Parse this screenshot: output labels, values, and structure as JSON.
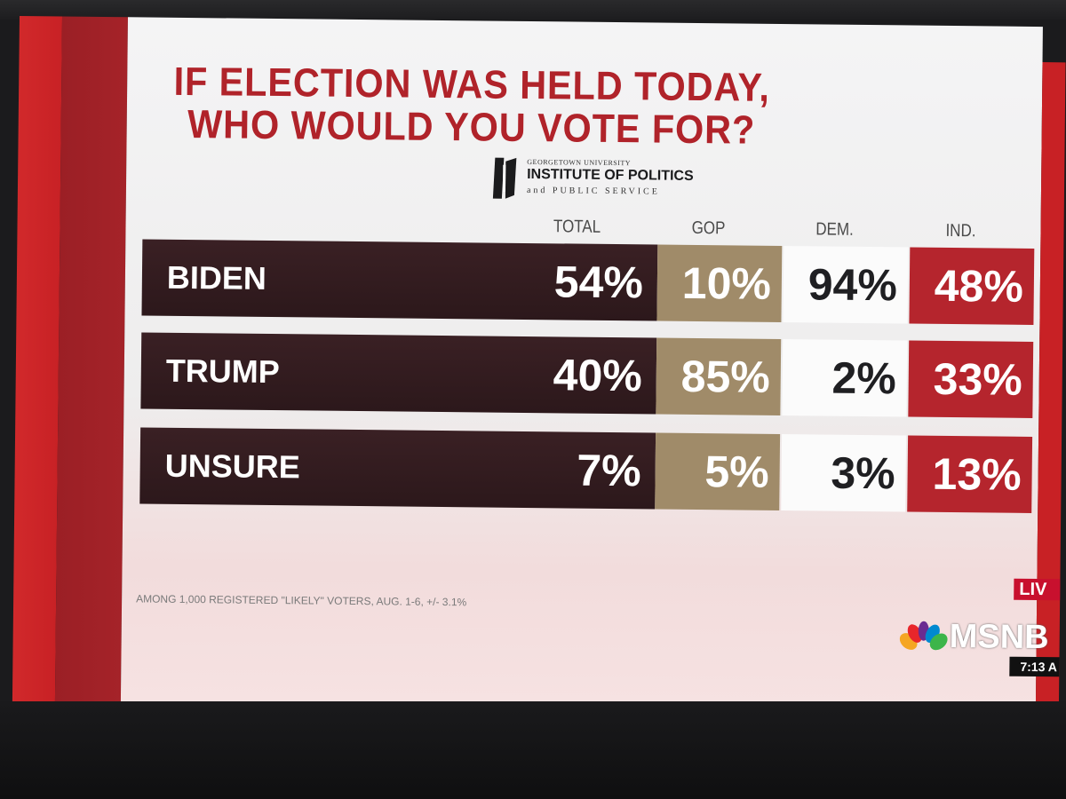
{
  "title_lines": [
    "IF ELECTION WAS HELD TODAY,",
    "WHO WOULD YOU VOTE FOR?"
  ],
  "logo": {
    "small": "GEORGETOWN UNIVERSITY",
    "main": "INSTITUTE OF POLITICS",
    "sub": "and PUBLIC SERVICE"
  },
  "footnote": "AMONG 1,000 REGISTERED \"LIKELY\" VOTERS, AUG. 1-6, +/- 3.1%",
  "broadcast": {
    "live": "LIV",
    "network": "MSNB",
    "time": "7:13 A"
  },
  "colors": {
    "title": "#b0232a",
    "name_bar": "#2c181b",
    "gop": "#a08b69",
    "dem": "#fbfbfb",
    "ind": "#b5252d"
  },
  "chart_data": {
    "type": "table",
    "title": "IF ELECTION WAS HELD TODAY, WHO WOULD YOU VOTE FOR?",
    "columns": [
      "TOTAL",
      "GOP",
      "DEM.",
      "IND."
    ],
    "rows": [
      {
        "name": "BIDEN",
        "values": [
          54,
          10,
          94,
          48
        ],
        "labels": [
          "54%",
          "10%",
          "94%",
          "48%"
        ]
      },
      {
        "name": "TRUMP",
        "values": [
          40,
          85,
          2,
          33
        ],
        "labels": [
          "40%",
          "85%",
          "2%",
          "33%"
        ]
      },
      {
        "name": "UNSURE",
        "values": [
          7,
          5,
          3,
          13
        ],
        "labels": [
          "7%",
          "5%",
          "3%",
          "13%"
        ]
      }
    ]
  }
}
